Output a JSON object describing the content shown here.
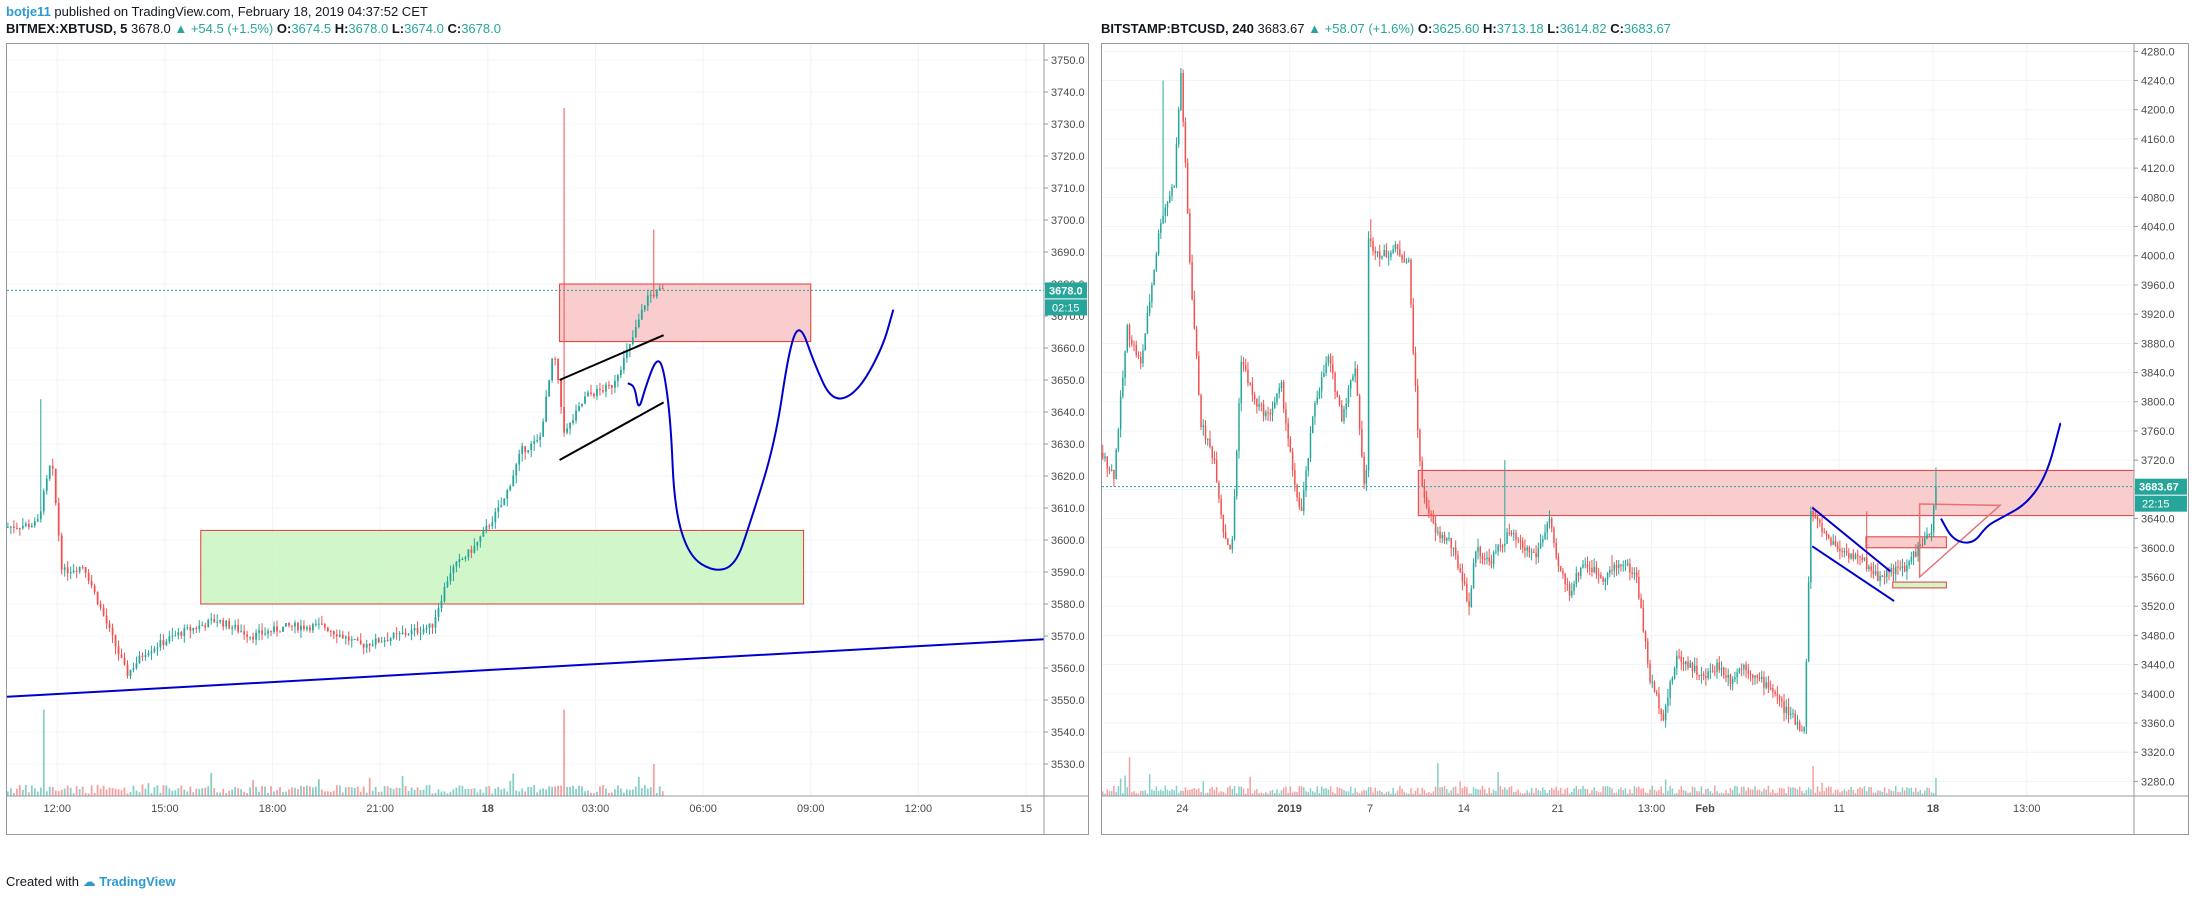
{
  "header": {
    "author": "botje11",
    "published_text": "published on TradingView.com, February 18, 2019 04:37:52 CET"
  },
  "footer": {
    "created_with": "Created with",
    "brand": "TradingView"
  },
  "left_chart": {
    "symbol": "BITMEX:XBTUSD, 5",
    "last": "3678.0",
    "change": "▲ +54.5 (+1.5%)",
    "o_label": "O:",
    "o": "3674.5",
    "h_label": "H:",
    "h": "3678.0",
    "l_label": "L:",
    "l": "3674.0",
    "c_label": "C:",
    "c": "3678.0",
    "price_badge": "3678.0",
    "time_badge": "02:15"
  },
  "right_chart": {
    "symbol": "BITSTAMP:BTCUSD, 240",
    "last": "3683.67",
    "change": "▲ +58.07 (+1.6%)",
    "o_label": "O:",
    "o": "3625.60",
    "h_label": "H:",
    "h": "3713.18",
    "l_label": "L:",
    "l": "3614.82",
    "c_label": "C:",
    "c": "3683.67",
    "price_badge": "3683.67",
    "time_badge": "22:15"
  },
  "colors": {
    "up": "#26a69a",
    "down": "#ef5350",
    "drawing": "#0000cc",
    "supply_zone": "#f8c4c4",
    "demand_zone": "#c8f5c0"
  },
  "chart_data": [
    {
      "type": "candlestick",
      "title": "BITMEX:XBTUSD, 5",
      "ylim": [
        3520,
        3755
      ],
      "y_ticks": [
        3530,
        3540,
        3550,
        3560,
        3570,
        3580,
        3590,
        3600,
        3610,
        3620,
        3630,
        3640,
        3650,
        3660,
        3670,
        3680,
        3690,
        3700,
        3710,
        3720,
        3730,
        3740,
        3750
      ],
      "x_ticks": [
        "12:00",
        "15:00",
        "18:00",
        "21:00",
        "18",
        "03:00",
        "06:00",
        "09:00",
        "12:00",
        "15"
      ],
      "x_tick_hours": [
        12,
        15,
        18,
        21,
        24,
        27,
        30,
        33,
        36,
        39
      ],
      "x_range_hours": [
        10.6,
        39.5
      ],
      "last_price": 3678.0,
      "price_path": [
        [
          10.6,
          3604
        ],
        [
          11.5,
          3605
        ],
        [
          11.9,
          3625
        ],
        [
          12.2,
          3590
        ],
        [
          12.8,
          3592
        ],
        [
          13.5,
          3572
        ],
        [
          14,
          3558
        ],
        [
          14.5,
          3565
        ],
        [
          15.5,
          3571
        ],
        [
          16.5,
          3575
        ],
        [
          17.5,
          3570
        ],
        [
          18.5,
          3573
        ],
        [
          19.5,
          3573
        ],
        [
          20.5,
          3567
        ],
        [
          21.5,
          3570
        ],
        [
          22.5,
          3573
        ],
        [
          23,
          3590
        ],
        [
          23.7,
          3598
        ],
        [
          24.5,
          3612
        ],
        [
          25,
          3628
        ],
        [
          25.5,
          3631
        ],
        [
          25.9,
          3659
        ],
        [
          26.2,
          3633
        ],
        [
          26.8,
          3645
        ],
        [
          27.5,
          3648
        ],
        [
          28,
          3660
        ],
        [
          28.5,
          3676
        ],
        [
          28.9,
          3678
        ]
      ],
      "spikes": [
        [
          11.5,
          3644
        ],
        [
          26.1,
          3735
        ],
        [
          28.6,
          3697
        ]
      ],
      "volume_spikes": [
        [
          11.6,
          6
        ],
        [
          26.1,
          5.5
        ],
        [
          28.6,
          2
        ]
      ],
      "zones": [
        {
          "kind": "supply",
          "x": [
            26,
            33
          ],
          "y": [
            3662,
            3680
          ]
        },
        {
          "kind": "demand",
          "x": [
            16,
            32.8
          ],
          "y": [
            3580,
            3603
          ]
        }
      ],
      "trendline": [
        [
          10.6,
          3551
        ],
        [
          39.5,
          3569
        ]
      ],
      "channel_lines": [
        [
          [
            26,
            3650
          ],
          [
            28.9,
            3664
          ]
        ],
        [
          [
            26,
            3625
          ],
          [
            28.9,
            3643
          ]
        ]
      ],
      "projection": [
        [
          27.9,
          3649
        ],
        [
          28.1,
          3648
        ],
        [
          28.2,
          3640
        ],
        [
          28.4,
          3648
        ],
        [
          28.7,
          3657
        ],
        [
          28.9,
          3654
        ],
        [
          29.1,
          3637
        ],
        [
          29.2,
          3610
        ],
        [
          29.6,
          3595
        ],
        [
          30.3,
          3590
        ],
        [
          30.9,
          3592
        ],
        [
          31.3,
          3605
        ],
        [
          32,
          3630
        ],
        [
          32.4,
          3660
        ],
        [
          32.7,
          3668
        ],
        [
          33.1,
          3655
        ],
        [
          33.6,
          3643
        ],
        [
          34.3,
          3646
        ],
        [
          35,
          3660
        ],
        [
          35.3,
          3672
        ]
      ]
    },
    {
      "type": "candlestick",
      "title": "BITSTAMP:BTCUSD, 240",
      "ylim": [
        3260,
        4290
      ],
      "y_ticks": [
        3280,
        3320,
        3360,
        3400,
        3440,
        3480,
        3520,
        3560,
        3600,
        3640,
        3680,
        3720,
        3760,
        3800,
        3840,
        3880,
        3920,
        3960,
        4000,
        4040,
        4080,
        4120,
        4160,
        4200,
        4240,
        4280
      ],
      "x_ticks": [
        "24",
        "2019",
        "7",
        "14",
        "21",
        "13:00",
        "Feb",
        "11",
        "18",
        "13:00"
      ],
      "x_tick_days": [
        24,
        32,
        38,
        45,
        52,
        59,
        63,
        73,
        80,
        87
      ],
      "x_range_days": [
        18,
        95
      ],
      "last_price": 3683.67,
      "price_path": [
        [
          18,
          3730
        ],
        [
          19,
          3700
        ],
        [
          20,
          3900
        ],
        [
          21,
          3850
        ],
        [
          22.5,
          4050
        ],
        [
          23.5,
          4100
        ],
        [
          24,
          4250
        ],
        [
          24.7,
          3980
        ],
        [
          25.5,
          3770
        ],
        [
          26.5,
          3720
        ],
        [
          27.2,
          3620
        ],
        [
          27.8,
          3595
        ],
        [
          28.5,
          3860
        ],
        [
          29.5,
          3800
        ],
        [
          30.5,
          3780
        ],
        [
          31.5,
          3820
        ],
        [
          32.5,
          3680
        ],
        [
          33,
          3650
        ],
        [
          34,
          3800
        ],
        [
          35,
          3860
        ],
        [
          36,
          3780
        ],
        [
          37,
          3850
        ],
        [
          37.8,
          3650
        ],
        [
          38,
          4020
        ],
        [
          39,
          4000
        ],
        [
          40,
          4010
        ],
        [
          41,
          3990
        ],
        [
          41.6,
          3780
        ],
        [
          42,
          3680
        ],
        [
          43,
          3620
        ],
        [
          44,
          3610
        ],
        [
          45,
          3560
        ],
        [
          45.5,
          3520
        ],
        [
          46,
          3600
        ],
        [
          47,
          3580
        ],
        [
          48.5,
          3620
        ],
        [
          49.5,
          3600
        ],
        [
          50.5,
          3590
        ],
        [
          51.5,
          3640
        ],
        [
          52,
          3580
        ],
        [
          53,
          3540
        ],
        [
          54,
          3580
        ],
        [
          55.5,
          3560
        ],
        [
          57,
          3580
        ],
        [
          58,
          3560
        ],
        [
          59,
          3420
        ],
        [
          60,
          3370
        ],
        [
          61,
          3450
        ],
        [
          62,
          3440
        ],
        [
          63,
          3420
        ],
        [
          64,
          3440
        ],
        [
          65,
          3420
        ],
        [
          66,
          3440
        ],
        [
          67,
          3420
        ],
        [
          68,
          3410
        ],
        [
          69,
          3380
        ],
        [
          70.5,
          3350
        ],
        [
          71,
          3650
        ],
        [
          72,
          3620
        ],
        [
          73,
          3600
        ],
        [
          74,
          3590
        ],
        [
          75,
          3580
        ],
        [
          76,
          3560
        ],
        [
          77,
          3570
        ],
        [
          78,
          3570
        ],
        [
          79,
          3600
        ],
        [
          80,
          3620
        ],
        [
          80.3,
          3680
        ]
      ],
      "spikes": [
        [
          22.5,
          4240
        ],
        [
          27.5,
          3590
        ],
        [
          38,
          4050
        ],
        [
          40.5,
          4000
        ],
        [
          48,
          3720
        ],
        [
          56,
          3590
        ],
        [
          75,
          3650
        ],
        [
          80.2,
          3710
        ]
      ],
      "volume_spikes": [
        [
          20,
          2.6
        ],
        [
          43,
          2.2
        ],
        [
          47.5,
          1.6
        ],
        [
          71,
          2
        ],
        [
          80.2,
          1.2
        ]
      ],
      "zones": [
        {
          "kind": "supply",
          "x": [
            41.6,
            95
          ],
          "y": [
            3644,
            3706
          ]
        },
        {
          "kind": "supply",
          "x": [
            75,
            81
          ],
          "y": [
            3600,
            3615
          ]
        },
        {
          "kind": "demand",
          "x": [
            77,
            81
          ],
          "y": [
            3545,
            3553
          ]
        }
      ],
      "wedge_upper": [
        [
          71,
          3655
        ],
        [
          76.8,
          3568
        ]
      ],
      "wedge_lower": [
        [
          71,
          3602
        ],
        [
          77.1,
          3527
        ]
      ],
      "triangle": [
        [
          79,
          3660
        ],
        [
          85,
          3658
        ],
        [
          79,
          3560
        ]
      ],
      "projection": [
        [
          80.6,
          3640
        ],
        [
          81.5,
          3610
        ],
        [
          83,
          3605
        ],
        [
          84,
          3630
        ],
        [
          85,
          3640
        ],
        [
          87,
          3660
        ],
        [
          88.5,
          3700
        ],
        [
          89.5,
          3770
        ]
      ]
    }
  ]
}
